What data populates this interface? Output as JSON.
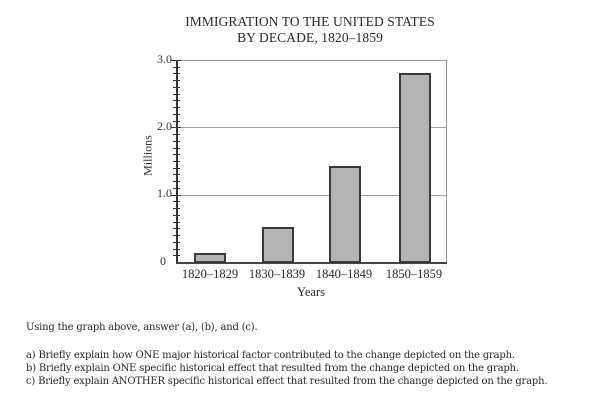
{
  "chart_data": {
    "type": "bar",
    "title": "IMMIGRATION TO THE UNITED STATES BY DECADE, 1820–1859",
    "title_lines": [
      "IMMIGRATION TO THE UNITED STATES",
      "BY DECADE, 1820–1859"
    ],
    "categories": [
      "1820–1829",
      "1830–1839",
      "1840–1849",
      "1850–1859"
    ],
    "values": [
      0.14,
      0.52,
      1.43,
      2.8
    ],
    "xlabel": "Years",
    "ylabel": "Millions",
    "ylim": [
      0,
      3.0
    ],
    "yticks": [
      "0",
      "1.0",
      "2.0",
      "3.0"
    ],
    "grid": true,
    "minor_tick_step": 0.1,
    "bar_color": "#b4b4b4",
    "legend": null
  },
  "questions": {
    "intro": "Using the graph above, answer (a), (b), and (c).",
    "items": [
      "a) Briefly explain how ONE major historical factor contributed to the change depicted on the graph.",
      "b) Briefly explain ONE specific historical effect that resulted from the change depicted on the graph.",
      "c) Briefly explain ANOTHER specific historical effect that resulted from the change depicted on the graph."
    ]
  }
}
